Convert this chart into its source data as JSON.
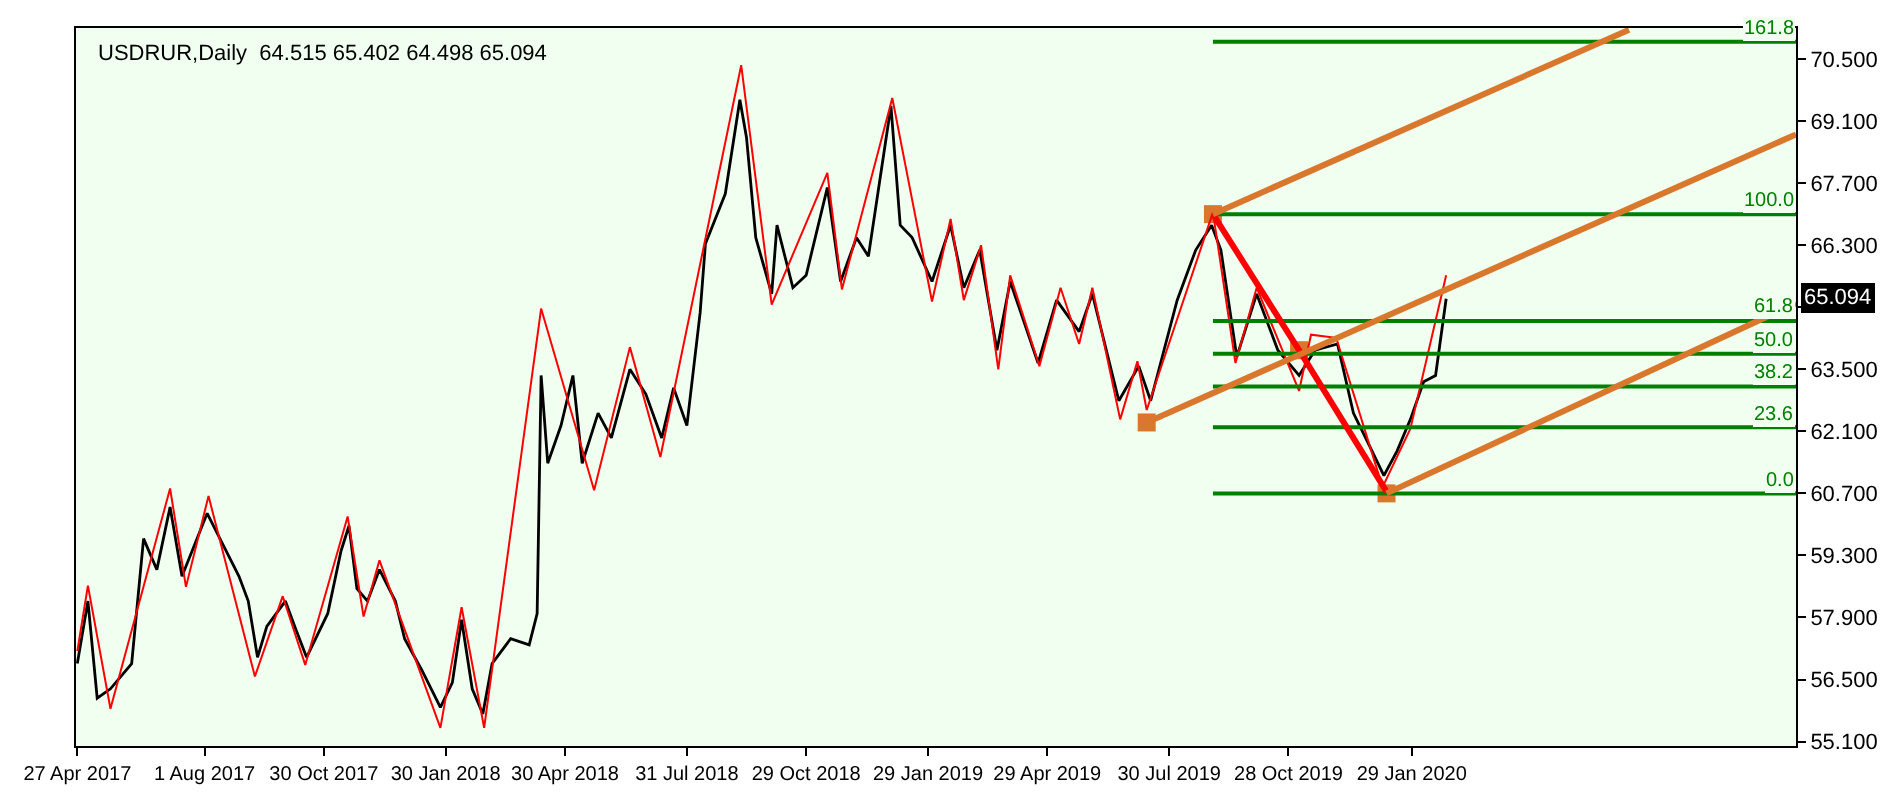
{
  "chart_data": {
    "type": "line",
    "title": "USDRUR,Daily  64.515 65.402 64.498 65.094",
    "xlim": [
      "2017-04-26",
      "2020-11-14"
    ],
    "ylim": [
      55.0,
      71.2
    ],
    "xticks": [
      {
        "value": "2017-04-27",
        "label": "27 Apr 2017"
      },
      {
        "value": "2017-08-01",
        "label": "1 Aug 2017"
      },
      {
        "value": "2017-10-30",
        "label": "30 Oct 2017"
      },
      {
        "value": "2018-01-30",
        "label": "30 Jan 2018"
      },
      {
        "value": "2018-04-30",
        "label": "30 Apr 2018"
      },
      {
        "value": "2018-07-31",
        "label": "31 Jul 2018"
      },
      {
        "value": "2018-10-29",
        "label": "29 Oct 2018"
      },
      {
        "value": "2019-01-29",
        "label": "29 Jan 2019"
      },
      {
        "value": "2019-04-29",
        "label": "29 Apr 2019"
      },
      {
        "value": "2019-07-30",
        "label": "30 Jul 2019"
      },
      {
        "value": "2019-10-28",
        "label": "28 Oct 2019"
      },
      {
        "value": "2020-01-29",
        "label": "29 Jan 2020"
      }
    ],
    "yticks": [
      {
        "value": 55.1,
        "label": "55.100"
      },
      {
        "value": 56.5,
        "label": "56.500"
      },
      {
        "value": 57.9,
        "label": "57.900"
      },
      {
        "value": 59.3,
        "label": "59.300"
      },
      {
        "value": 60.7,
        "label": "60.700"
      },
      {
        "value": 62.1,
        "label": "62.100"
      },
      {
        "value": 63.5,
        "label": "63.500"
      },
      {
        "value": 64.9,
        "label": null
      },
      {
        "value": 66.3,
        "label": "66.300"
      },
      {
        "value": 67.7,
        "label": "67.700"
      },
      {
        "value": 69.1,
        "label": "69.100"
      },
      {
        "value": 70.5,
        "label": "70.500"
      }
    ],
    "grid": false,
    "series": [
      {
        "color": "#000000",
        "x": [
          "2017-04-27",
          "2017-05-05",
          "2017-05-12",
          "2017-05-22",
          "2017-06-07",
          "2017-06-16",
          "2017-06-26",
          "2017-07-06",
          "2017-07-15",
          "2017-08-03",
          "2017-08-15",
          "2017-08-27",
          "2017-09-03",
          "2017-09-10",
          "2017-09-17",
          "2017-10-01",
          "2017-10-08",
          "2017-10-17",
          "2017-11-02",
          "2017-11-12",
          "2017-11-18",
          "2017-11-24",
          "2017-12-02",
          "2017-12-11",
          "2017-12-23",
          "2017-12-30",
          "2018-01-12",
          "2018-01-26",
          "2018-02-04",
          "2018-02-11",
          "2018-02-19",
          "2018-02-27",
          "2018-03-06",
          "2018-03-20",
          "2018-04-03",
          "2018-04-09",
          "2018-04-12",
          "2018-04-17",
          "2018-04-27",
          "2018-05-06",
          "2018-05-13",
          "2018-05-25",
          "2018-06-04",
          "2018-06-18",
          "2018-06-30",
          "2018-07-12",
          "2018-07-21",
          "2018-07-31",
          "2018-08-10",
          "2018-08-14",
          "2018-08-29",
          "2018-09-09",
          "2018-09-14",
          "2018-09-21",
          "2018-10-03",
          "2018-10-07",
          "2018-10-19",
          "2018-10-29",
          "2018-11-14",
          "2018-11-24",
          "2018-12-06",
          "2018-12-15",
          "2019-01-01",
          "2019-01-08",
          "2019-01-17",
          "2019-02-01",
          "2019-02-15",
          "2019-02-25",
          "2019-03-09",
          "2019-03-22",
          "2019-04-01",
          "2019-04-22",
          "2019-05-06",
          "2019-05-23",
          "2019-06-02",
          "2019-06-22",
          "2019-07-07",
          "2019-07-16",
          "2019-08-05",
          "2019-08-19",
          "2019-08-31",
          "2019-09-07",
          "2019-09-19",
          "2019-10-04",
          "2019-10-20",
          "2019-11-05",
          "2019-11-17",
          "2019-12-04",
          "2019-12-16",
          "2019-12-30",
          "2020-01-08",
          "2020-01-18",
          "2020-01-28",
          "2020-02-07",
          "2020-02-16",
          "2020-02-24"
        ],
        "values": [
          56.86,
          58.27,
          56.08,
          56.29,
          56.86,
          59.68,
          58.98,
          60.39,
          58.83,
          60.25,
          59.54,
          58.83,
          58.27,
          57.0,
          57.7,
          58.27,
          57.7,
          57.0,
          57.99,
          59.4,
          59.97,
          58.55,
          58.27,
          58.98,
          58.27,
          57.42,
          56.71,
          55.87,
          56.43,
          57.85,
          56.29,
          55.72,
          56.86,
          57.42,
          57.28,
          57.99,
          63.36,
          61.38,
          62.23,
          63.36,
          61.38,
          62.51,
          61.95,
          63.5,
          62.94,
          61.95,
          63.08,
          62.23,
          64.77,
          66.33,
          67.46,
          69.58,
          68.73,
          66.47,
          65.2,
          66.75,
          65.34,
          65.62,
          67.6,
          65.48,
          66.47,
          66.05,
          69.44,
          66.75,
          66.47,
          65.48,
          66.75,
          65.34,
          66.19,
          63.93,
          65.48,
          63.64,
          65.06,
          64.35,
          65.2,
          62.79,
          63.57,
          62.79,
          65.06,
          66.19,
          66.75,
          66.19,
          63.78,
          65.2,
          63.93,
          63.36,
          63.93,
          64.07,
          62.51,
          61.66,
          61.1,
          61.66,
          62.37,
          63.22,
          63.36,
          65.09
        ]
      },
      {
        "color": "#ff0000",
        "x": [
          "2017-04-27",
          "2017-05-05",
          "2017-05-22",
          "2017-07-06",
          "2017-07-18",
          "2017-08-04",
          "2017-09-08",
          "2017-09-29",
          "2017-10-16",
          "2017-11-17",
          "2017-11-29",
          "2017-12-11",
          "2018-01-26",
          "2018-02-11",
          "2018-02-28",
          "2018-04-12",
          "2018-05-22",
          "2018-06-18",
          "2018-07-11",
          "2018-09-10",
          "2018-10-03",
          "2018-11-14",
          "2018-11-25",
          "2019-01-02",
          "2019-02-01",
          "2019-02-15",
          "2019-02-25",
          "2019-03-10",
          "2019-03-23",
          "2019-04-01",
          "2019-04-23",
          "2019-05-09",
          "2019-05-23",
          "2019-06-02",
          "2019-06-23",
          "2019-07-06",
          "2019-07-13",
          "2019-09-01",
          "2019-09-18",
          "2019-10-04",
          "2019-11-05",
          "2019-11-14",
          "2019-12-03",
          "2020-01-07",
          "2020-01-28",
          "2020-02-24"
        ],
        "values": [
          57.14,
          58.62,
          55.84,
          60.81,
          58.59,
          60.64,
          56.57,
          58.38,
          56.83,
          60.18,
          57.92,
          59.19,
          55.41,
          58.13,
          55.41,
          64.87,
          60.77,
          64.0,
          61.52,
          70.36,
          64.96,
          67.93,
          65.3,
          69.62,
          65.03,
          66.89,
          65.06,
          66.3,
          63.5,
          65.62,
          63.57,
          65.34,
          64.07,
          65.34,
          62.37,
          63.68,
          62.58,
          67.04,
          63.64,
          65.34,
          63.01,
          64.28,
          64.21,
          60.84,
          62.16,
          65.62
        ]
      },
      {
        "color": "#008000",
        "x": [
          "2019-09-01",
          "2020-11-14"
        ],
        "values": [
          70.89,
          70.89
        ]
      },
      {
        "color": "#008000",
        "x": [
          "2019-09-01",
          "2020-11-14"
        ],
        "values": [
          67.0,
          67.0
        ]
      },
      {
        "color": "#008000",
        "x": [
          "2019-09-01",
          "2020-11-14"
        ],
        "values": [
          64.59,
          64.59
        ]
      },
      {
        "color": "#008000",
        "x": [
          "2019-09-01",
          "2020-11-14"
        ],
        "values": [
          63.85,
          63.85
        ]
      },
      {
        "color": "#008000",
        "x": [
          "2019-09-01",
          "2020-11-14"
        ],
        "values": [
          63.11,
          63.11
        ]
      },
      {
        "color": "#008000",
        "x": [
          "2019-09-01",
          "2020-11-14"
        ],
        "values": [
          62.19,
          62.19
        ]
      },
      {
        "color": "#008000",
        "x": [
          "2019-09-01",
          "2020-11-14"
        ],
        "values": [
          60.7,
          60.7
        ]
      },
      {
        "color": "#ff0000",
        "x": [
          "2019-09-01",
          "2019-11-05",
          "2020-01-10"
        ],
        "values": [
          67.0,
          63.93,
          60.74
        ]
      },
      {
        "color": "#d9782d",
        "x": [
          "2019-09-01",
          "2020-07-11"
        ],
        "values": [
          67.0,
          71.16
        ]
      },
      {
        "color": "#d9782d",
        "x": [
          "2019-07-13",
          "2020-11-14"
        ],
        "values": [
          62.3,
          68.8
        ]
      },
      {
        "color": "#d9782d",
        "x": [
          "2020-01-10",
          "2020-11-14"
        ],
        "values": [
          60.7,
          64.99
        ]
      },
      {
        "type": "scatter",
        "marker": "square",
        "color": "#d9782d",
        "x": [
          "2019-07-13",
          "2019-09-01",
          "2019-11-05",
          "2020-01-10"
        ],
        "values": [
          62.3,
          67.0,
          63.93,
          60.7
        ]
      }
    ],
    "annotations": [
      {
        "text": "161.8",
        "x": "2020-11-14",
        "y": 70.89
      },
      {
        "text": "100.0",
        "x": "2020-11-14",
        "y": 67.0
      },
      {
        "text": "61.8",
        "x": "2020-11-14",
        "y": 64.59
      },
      {
        "text": "50.0",
        "x": "2020-11-14",
        "y": 63.85
      },
      {
        "text": "38.2",
        "x": "2020-11-14",
        "y": 63.11
      },
      {
        "text": "23.6",
        "x": "2020-11-14",
        "y": 62.19
      },
      {
        "text": "0.0",
        "x": "2020-11-14",
        "y": 60.7
      },
      {
        "text": "65.094",
        "y": 65.094
      }
    ]
  }
}
